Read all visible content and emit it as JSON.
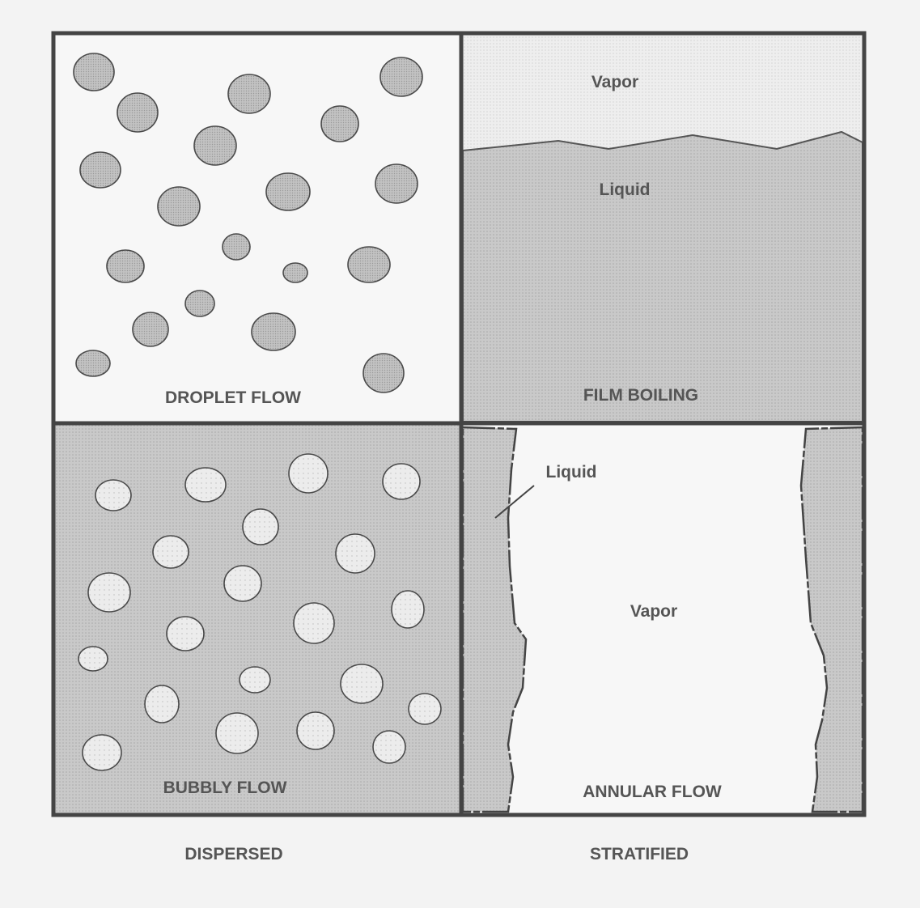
{
  "panels": {
    "droplet": {
      "label": "DROPLET FLOW"
    },
    "film": {
      "label": "FILM BOILING",
      "vapor_label": "Vapor",
      "liquid_label": "Liquid"
    },
    "bubbly": {
      "label": "BUBBLY FLOW"
    },
    "annular": {
      "label": "ANNULAR FLOW",
      "liquid_label": "Liquid",
      "vapor_label": "Vapor"
    }
  },
  "columns": {
    "left": "DISPERSED",
    "right": "STRATIFIED"
  },
  "colors": {
    "liquid_fill": "#c4c4c4",
    "vapor_fill": "#ececec",
    "bubble_fill": "#e8e8e8",
    "droplet_fill": "#bdbdbd",
    "border": "#444444",
    "text": "#555555"
  }
}
